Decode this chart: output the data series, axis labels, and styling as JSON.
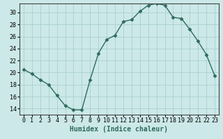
{
  "x": [
    0,
    1,
    2,
    3,
    4,
    5,
    6,
    7,
    8,
    9,
    10,
    11,
    12,
    13,
    14,
    15,
    16,
    17,
    18,
    19,
    20,
    21,
    22,
    23
  ],
  "y": [
    20.5,
    19.8,
    18.8,
    18.0,
    16.2,
    14.5,
    13.8,
    13.8,
    18.8,
    23.2,
    25.5,
    26.2,
    28.5,
    28.8,
    30.2,
    31.2,
    31.5,
    31.2,
    29.2,
    29.0,
    27.2,
    25.2,
    23.0,
    19.5
  ],
  "line_color": "#2e6b5e",
  "marker": "D",
  "marker_size": 2.5,
  "bg_color": "#cce8e8",
  "grid_color": "#aacfcf",
  "xlabel": "Humidex (Indice chaleur)",
  "xlim": [
    -0.5,
    23.5
  ],
  "ylim": [
    13.0,
    31.5
  ],
  "yticks": [
    14,
    16,
    18,
    20,
    22,
    24,
    26,
    28,
    30
  ],
  "xticks": [
    0,
    1,
    2,
    3,
    4,
    5,
    6,
    7,
    8,
    9,
    10,
    11,
    12,
    13,
    14,
    15,
    16,
    17,
    18,
    19,
    20,
    21,
    22,
    23
  ],
  "xlabel_fontsize": 7,
  "tick_fontsize": 6,
  "linewidth": 1.0
}
